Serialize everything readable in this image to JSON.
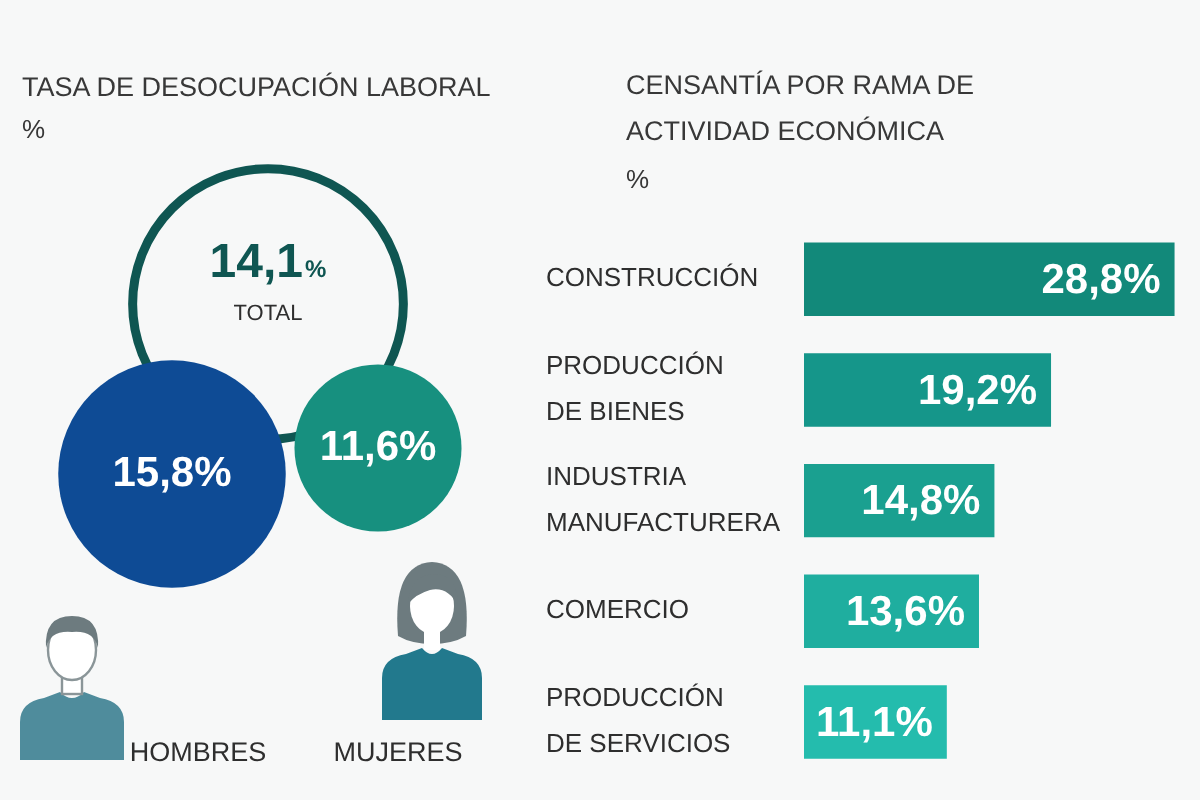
{
  "chart_data": [
    {
      "type": "other",
      "title": "TASA DE DESOCUPACIÓN LABORAL",
      "subtitle": "%",
      "categories": [
        "TOTAL",
        "HOMBRES",
        "MUJERES"
      ],
      "values": [
        14.1,
        15.8,
        11.6
      ],
      "value_labels": [
        "14,1%",
        "15,8%",
        "11,6%"
      ],
      "colors": [
        "#0f5652",
        "#0e4b95",
        "#17907f"
      ]
    },
    {
      "type": "bar",
      "orientation": "horizontal",
      "title": "CENSANTÍA POR RAMA DE ACTIVIDAD ECONÓMICA",
      "subtitle": "%",
      "categories": [
        "CONSTRUCCIÓN",
        "PRODUCCIÓN DE BIENES",
        "INDUSTRIA MANUFACTURERA",
        "COMERCIO",
        "PRODUCCIÓN DE SERVICIOS"
      ],
      "values": [
        28.8,
        19.2,
        14.8,
        13.6,
        11.1
      ],
      "value_labels": [
        "28,8%",
        "19,2%",
        "14,8%",
        "13,6%",
        "11,1%"
      ],
      "colors": [
        "#12897a",
        "#15968a",
        "#1aa090",
        "#1fae9f",
        "#24bcad"
      ],
      "tick_labels": "y"
    }
  ]
}
